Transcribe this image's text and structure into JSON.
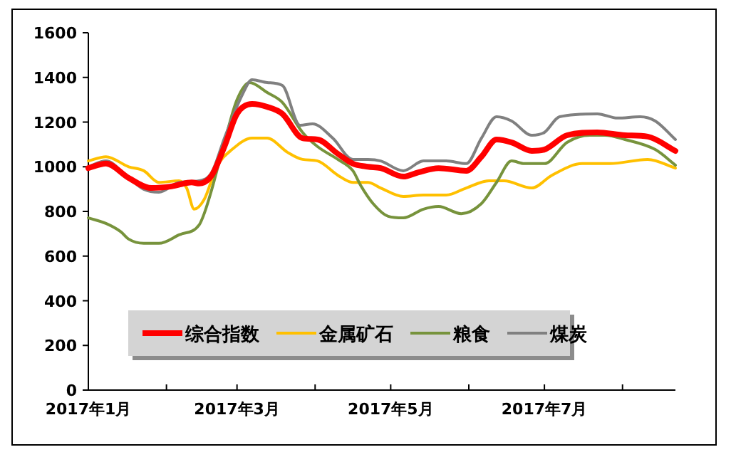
{
  "chart_data": {
    "type": "line",
    "x": [
      "2017-01-01",
      "2017-01-08",
      "2017-01-17",
      "2017-01-26",
      "2017-02-03",
      "2017-02-11",
      "2017-02-14",
      "2017-02-19",
      "2017-02-24",
      "2017-03-01",
      "2017-03-07",
      "2017-03-13",
      "2017-03-19",
      "2017-03-27",
      "2017-04-02",
      "2017-04-10",
      "2017-04-16",
      "2017-04-22",
      "2017-04-27",
      "2017-05-06",
      "2017-05-12",
      "2017-05-20",
      "2017-05-31",
      "2017-06-06",
      "2017-06-12",
      "2017-06-18",
      "2017-06-26",
      "2017-07-01",
      "2017-07-10",
      "2017-07-22",
      "2017-08-02",
      "2017-08-11",
      "2017-08-22"
    ],
    "series": [
      {
        "name": "综合指数",
        "color": "#ff0000",
        "values": [
          994,
          1014,
          950,
          905,
          912,
          930,
          925,
          962,
          1090,
          1237,
          1281,
          1268,
          1237,
          1128,
          1122,
          1058,
          1014,
          1000,
          994,
          956,
          975,
          994,
          982,
          1045,
          1122,
          1109,
          1071,
          1077,
          1141,
          1154,
          1141,
          1135,
          1071
        ]
      },
      {
        "name": "金属矿石",
        "color": "#ffc000",
        "x": [
          "2017-01-01",
          "2017-01-08",
          "2017-01-17",
          "2017-01-23",
          "2017-01-29",
          "2017-02-06",
          "2017-02-09",
          "2017-02-12",
          "2017-02-16",
          "2017-02-21",
          "2017-02-27",
          "2017-03-07",
          "2017-03-13",
          "2017-03-21",
          "2017-03-27",
          "2017-04-02",
          "2017-04-10",
          "2017-04-16",
          "2017-04-22",
          "2017-04-27",
          "2017-05-06",
          "2017-05-14",
          "2017-05-23",
          "2017-05-31",
          "2017-06-09",
          "2017-06-15",
          "2017-06-26",
          "2017-07-04",
          "2017-07-16",
          "2017-07-27",
          "2017-08-11",
          "2017-08-22"
        ],
        "values": [
          1026,
          1045,
          1000,
          982,
          930,
          937,
          905,
          810,
          854,
          1000,
          1077,
          1128,
          1128,
          1065,
          1033,
          1026,
          962,
          930,
          930,
          905,
          867,
          873,
          873,
          905,
          937,
          937,
          905,
          962,
          1014,
          1014,
          1033,
          994
        ]
      },
      {
        "name": "粮食",
        "color": "#77933c",
        "x": [
          "2017-01-01",
          "2017-01-08",
          "2017-01-14",
          "2017-01-17",
          "2017-01-23",
          "2017-01-29",
          "2017-02-06",
          "2017-02-14",
          "2017-02-16",
          "2017-02-19",
          "2017-02-24",
          "2017-03-01",
          "2017-03-06",
          "2017-03-13",
          "2017-03-19",
          "2017-03-27",
          "2017-04-02",
          "2017-04-10",
          "2017-04-16",
          "2017-04-19",
          "2017-04-24",
          "2017-04-30",
          "2017-05-06",
          "2017-05-14",
          "2017-05-20",
          "2017-05-29",
          "2017-06-06",
          "2017-06-12",
          "2017-06-18",
          "2017-06-23",
          "2017-07-01",
          "2017-07-10",
          "2017-07-19",
          "2017-07-25",
          "2017-08-02",
          "2017-08-14",
          "2017-08-22"
        ],
        "values": [
          771,
          746,
          708,
          676,
          657,
          657,
          695,
          740,
          791,
          899,
          1109,
          1300,
          1377,
          1332,
          1288,
          1154,
          1090,
          1033,
          982,
          918,
          835,
          778,
          771,
          810,
          822,
          790,
          835,
          930,
          1026,
          1014,
          1014,
          1109,
          1141,
          1141,
          1122,
          1077,
          1007
        ]
      },
      {
        "name": "煤炭",
        "color": "#808080",
        "x": [
          "2017-01-01",
          "2017-01-08",
          "2017-01-17",
          "2017-01-23",
          "2017-01-29",
          "2017-02-06",
          "2017-02-14",
          "2017-02-19",
          "2017-02-24",
          "2017-03-03",
          "2017-03-07",
          "2017-03-13",
          "2017-03-19",
          "2017-03-26",
          "2017-03-31",
          "2017-04-08",
          "2017-04-16",
          "2017-04-22",
          "2017-04-27",
          "2017-05-06",
          "2017-05-14",
          "2017-05-23",
          "2017-05-31",
          "2017-06-06",
          "2017-06-12",
          "2017-06-18",
          "2017-06-26",
          "2017-07-01",
          "2017-07-07",
          "2017-07-22",
          "2017-07-30",
          "2017-08-08",
          "2017-08-14",
          "2017-08-22"
        ],
        "values": [
          1000,
          1026,
          950,
          899,
          886,
          930,
          937,
          975,
          1128,
          1320,
          1390,
          1377,
          1364,
          1186,
          1192,
          1128,
          1033,
          1033,
          1026,
          982,
          1026,
          1026,
          1014,
          1128,
          1224,
          1205,
          1141,
          1154,
          1224,
          1237,
          1218,
          1224,
          1205,
          1122
        ]
      }
    ],
    "xlim": [
      "2017-01-01",
      "2017-08-22"
    ],
    "xticks": [
      {
        "value": "2017-01-01",
        "label": "2017年1月"
      },
      {
        "value": "2017-02-01",
        "label": null
      },
      {
        "value": "2017-03-01",
        "label": "2017年3月"
      },
      {
        "value": "2017-04-01",
        "label": null
      },
      {
        "value": "2017-05-01",
        "label": "2017年5月"
      },
      {
        "value": "2017-06-01",
        "label": null
      },
      {
        "value": "2017-07-01",
        "label": "2017年7月"
      },
      {
        "value": "2017-08-01",
        "label": null
      }
    ],
    "ylim": [
      0,
      1600
    ],
    "yticks": [
      0,
      200,
      400,
      600,
      800,
      1000,
      1200,
      1400,
      1600
    ],
    "legend": "bottom",
    "grid": false,
    "marker": "none",
    "line_style": "solid"
  }
}
